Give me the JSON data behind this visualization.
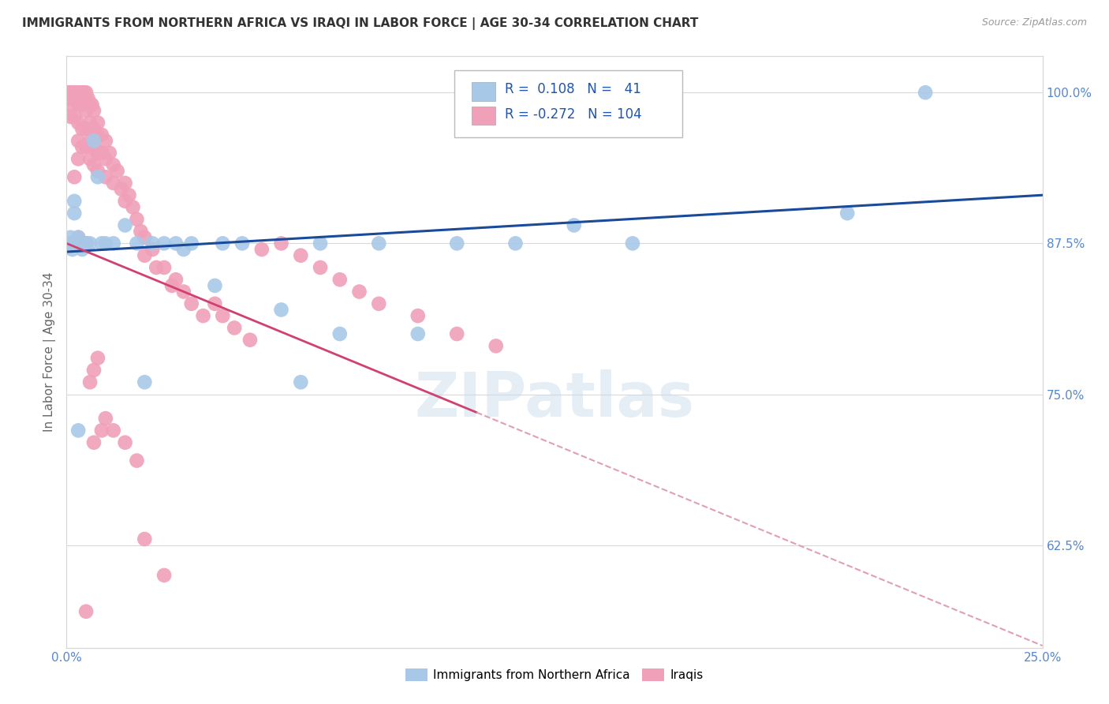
{
  "title": "IMMIGRANTS FROM NORTHERN AFRICA VS IRAQI IN LABOR FORCE | AGE 30-34 CORRELATION CHART",
  "source": "Source: ZipAtlas.com",
  "ylabel": "In Labor Force | Age 30-34",
  "xlim": [
    0.0,
    0.25
  ],
  "ylim": [
    0.54,
    1.03
  ],
  "xticks": [
    0.0,
    0.05,
    0.1,
    0.15,
    0.2,
    0.25
  ],
  "xticklabels": [
    "0.0%",
    "",
    "",
    "",
    "",
    "25.0%"
  ],
  "yticks": [
    0.625,
    0.75,
    0.875,
    1.0
  ],
  "yticklabels": [
    "62.5%",
    "75.0%",
    "87.5%",
    "100.0%"
  ],
  "blue_color": "#a8c8e8",
  "pink_color": "#f0a0b8",
  "blue_line_color": "#1a4a9a",
  "pink_line_color": "#d04070",
  "pink_dash_color": "#e0a0b0",
  "background_color": "#ffffff",
  "grid_color": "#d8d8d8",
  "tick_color": "#5588cc",
  "watermark": "ZIPatlas",
  "legend_R_blue": "0.108",
  "legend_N_blue": "41",
  "legend_R_pink": "-0.272",
  "legend_N_pink": "104",
  "blue_x": [
    0.0005,
    0.001,
    0.0015,
    0.002,
    0.002,
    0.003,
    0.003,
    0.004,
    0.004,
    0.005,
    0.006,
    0.007,
    0.008,
    0.009,
    0.01,
    0.012,
    0.015,
    0.018,
    0.02,
    0.022,
    0.025,
    0.028,
    0.03,
    0.032,
    0.038,
    0.04,
    0.045,
    0.055,
    0.06,
    0.065,
    0.07,
    0.08,
    0.09,
    0.1,
    0.115,
    0.13,
    0.145,
    0.002,
    0.003,
    0.2,
    0.22
  ],
  "blue_y": [
    0.875,
    0.88,
    0.87,
    0.875,
    0.9,
    0.875,
    0.88,
    0.875,
    0.87,
    0.875,
    0.875,
    0.96,
    0.93,
    0.875,
    0.875,
    0.875,
    0.89,
    0.875,
    0.76,
    0.875,
    0.875,
    0.875,
    0.87,
    0.875,
    0.84,
    0.875,
    0.875,
    0.82,
    0.76,
    0.875,
    0.8,
    0.875,
    0.8,
    0.875,
    0.875,
    0.89,
    0.875,
    0.91,
    0.72,
    0.9,
    1.0
  ],
  "pink_x": [
    0.0003,
    0.0005,
    0.0008,
    0.001,
    0.001,
    0.001,
    0.0015,
    0.002,
    0.002,
    0.002,
    0.0025,
    0.003,
    0.003,
    0.003,
    0.003,
    0.003,
    0.0035,
    0.004,
    0.004,
    0.004,
    0.004,
    0.0045,
    0.005,
    0.005,
    0.005,
    0.005,
    0.0055,
    0.006,
    0.006,
    0.006,
    0.006,
    0.0065,
    0.007,
    0.007,
    0.007,
    0.007,
    0.008,
    0.008,
    0.008,
    0.008,
    0.009,
    0.009,
    0.01,
    0.01,
    0.01,
    0.011,
    0.012,
    0.012,
    0.013,
    0.014,
    0.015,
    0.015,
    0.016,
    0.017,
    0.018,
    0.019,
    0.02,
    0.02,
    0.022,
    0.023,
    0.025,
    0.027,
    0.028,
    0.03,
    0.032,
    0.035,
    0.038,
    0.04,
    0.043,
    0.047,
    0.05,
    0.055,
    0.06,
    0.065,
    0.07,
    0.075,
    0.08,
    0.09,
    0.1,
    0.11,
    0.001,
    0.001,
    0.002,
    0.002,
    0.003,
    0.003,
    0.004,
    0.004,
    0.005,
    0.005,
    0.006,
    0.007,
    0.008,
    0.009,
    0.01,
    0.012,
    0.015,
    0.018,
    0.02,
    0.025,
    0.002,
    0.003,
    0.005,
    0.007
  ],
  "pink_y": [
    1.0,
    1.0,
    0.995,
    1.0,
    0.99,
    0.98,
    1.0,
    1.0,
    0.995,
    0.98,
    1.0,
    1.0,
    0.99,
    0.975,
    0.96,
    0.945,
    1.0,
    1.0,
    0.99,
    0.97,
    0.955,
    1.0,
    1.0,
    0.985,
    0.97,
    0.955,
    0.995,
    0.99,
    0.975,
    0.96,
    0.945,
    0.99,
    0.985,
    0.97,
    0.955,
    0.94,
    0.975,
    0.965,
    0.95,
    0.935,
    0.965,
    0.95,
    0.96,
    0.945,
    0.93,
    0.95,
    0.94,
    0.925,
    0.935,
    0.92,
    0.925,
    0.91,
    0.915,
    0.905,
    0.895,
    0.885,
    0.88,
    0.865,
    0.87,
    0.855,
    0.855,
    0.84,
    0.845,
    0.835,
    0.825,
    0.815,
    0.825,
    0.815,
    0.805,
    0.795,
    0.87,
    0.875,
    0.865,
    0.855,
    0.845,
    0.835,
    0.825,
    0.815,
    0.8,
    0.79,
    0.875,
    0.875,
    0.875,
    0.875,
    0.875,
    0.875,
    0.875,
    0.875,
    0.875,
    0.875,
    0.76,
    0.77,
    0.78,
    0.72,
    0.73,
    0.72,
    0.71,
    0.695,
    0.63,
    0.6,
    0.93,
    0.88,
    0.57,
    0.71
  ]
}
